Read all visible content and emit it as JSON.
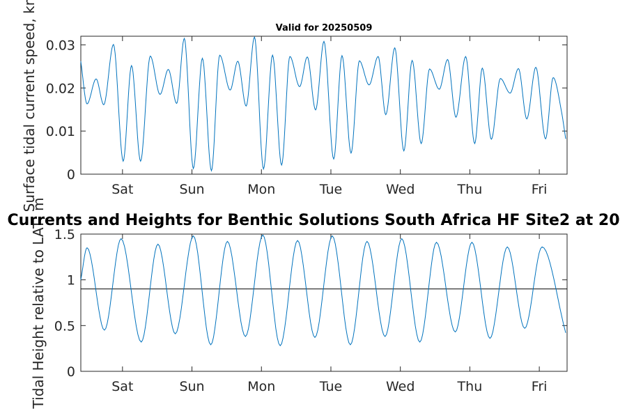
{
  "figure": {
    "title_top": "Valid for 20250509",
    "title_main": "Currents and Heights for Benthic Solutions South Africa HF Site2 at 20"
  },
  "chart_data": [
    {
      "type": "line",
      "name": "tidal-current",
      "ylabel": "Surface tidal current speed, kn",
      "ylim": [
        0,
        0.032
      ],
      "yticks": [
        0,
        0.01,
        0.02,
        0.03
      ],
      "ytick_labels": [
        "0",
        "0.01",
        "0.02",
        "0.03"
      ],
      "xlim": [
        0,
        7.0
      ],
      "xticks": [
        0.6,
        1.6,
        2.6,
        3.6,
        4.6,
        5.6,
        6.6
      ],
      "xtick_labels": [
        "Sat",
        "Sun",
        "Mon",
        "Tue",
        "Wed",
        "Thu",
        "Fri"
      ],
      "line_color": "#0072BD",
      "series": [
        {
          "x": [
            0.0,
            0.09,
            0.22,
            0.33,
            0.47,
            0.61,
            0.73,
            0.86,
            1.0,
            1.14,
            1.26,
            1.38,
            1.49,
            1.62,
            1.75,
            1.88,
            2.0,
            2.15,
            2.26,
            2.38,
            2.5,
            2.63,
            2.76,
            2.89,
            3.01,
            3.15,
            3.26,
            3.38,
            3.5,
            3.64,
            3.76,
            3.89,
            4.01,
            4.15,
            4.28,
            4.39,
            4.52,
            4.65,
            4.77,
            4.9,
            5.02,
            5.16,
            5.28,
            5.4,
            5.54,
            5.67,
            5.78,
            5.91,
            6.04,
            6.18,
            6.3,
            6.42,
            6.55,
            6.69,
            6.8,
            6.92,
            6.98
          ],
          "y": [
            0.0262,
            0.0163,
            0.0221,
            0.0161,
            0.0301,
            0.003,
            0.0252,
            0.003,
            0.0274,
            0.0185,
            0.0243,
            0.0164,
            0.0315,
            0.0013,
            0.0269,
            0.0008,
            0.0276,
            0.0195,
            0.0262,
            0.0158,
            0.0318,
            0.0012,
            0.0276,
            0.0021,
            0.0273,
            0.0203,
            0.0272,
            0.0149,
            0.0308,
            0.0035,
            0.0275,
            0.0049,
            0.0263,
            0.0207,
            0.0273,
            0.0138,
            0.0293,
            0.0054,
            0.0264,
            0.0071,
            0.0244,
            0.0197,
            0.0266,
            0.0132,
            0.0273,
            0.0071,
            0.0246,
            0.0081,
            0.0222,
            0.0188,
            0.0245,
            0.0128,
            0.0248,
            0.0082,
            0.0224,
            0.0145,
            0.0082
          ]
        }
      ]
    },
    {
      "type": "line",
      "name": "tidal-height",
      "ylabel": "Tidal Height relative to LAT, m",
      "ylim": [
        0,
        1.5
      ],
      "yticks": [
        0,
        0.5,
        1,
        1.5
      ],
      "ytick_labels": [
        "0",
        "0.5",
        "1",
        "1.5"
      ],
      "xlim": [
        0,
        7.0
      ],
      "xticks": [
        0.6,
        1.6,
        2.6,
        3.6,
        4.6,
        5.6,
        6.6
      ],
      "xtick_labels": [
        "Sat",
        "Sun",
        "Mon",
        "Tue",
        "Wed",
        "Thu",
        "Fri"
      ],
      "line_color": "#0072BD",
      "reference_line": {
        "y": 0.9,
        "color": "#000000"
      },
      "series": [
        {
          "x": [
            0.0,
            0.09,
            0.34,
            0.58,
            0.87,
            1.11,
            1.36,
            1.62,
            1.87,
            2.11,
            2.37,
            2.62,
            2.87,
            3.12,
            3.37,
            3.62,
            3.88,
            4.12,
            4.38,
            4.62,
            4.88,
            5.12,
            5.39,
            5.63,
            5.89,
            6.14,
            6.39,
            6.64,
            6.98
          ],
          "y": [
            1.0,
            1.35,
            0.45,
            1.45,
            0.32,
            1.39,
            0.41,
            1.48,
            0.29,
            1.42,
            0.38,
            1.49,
            0.28,
            1.43,
            0.37,
            1.48,
            0.29,
            1.42,
            0.38,
            1.45,
            0.32,
            1.41,
            0.43,
            1.41,
            0.36,
            1.36,
            0.47,
            1.36,
            0.42
          ]
        }
      ]
    }
  ]
}
